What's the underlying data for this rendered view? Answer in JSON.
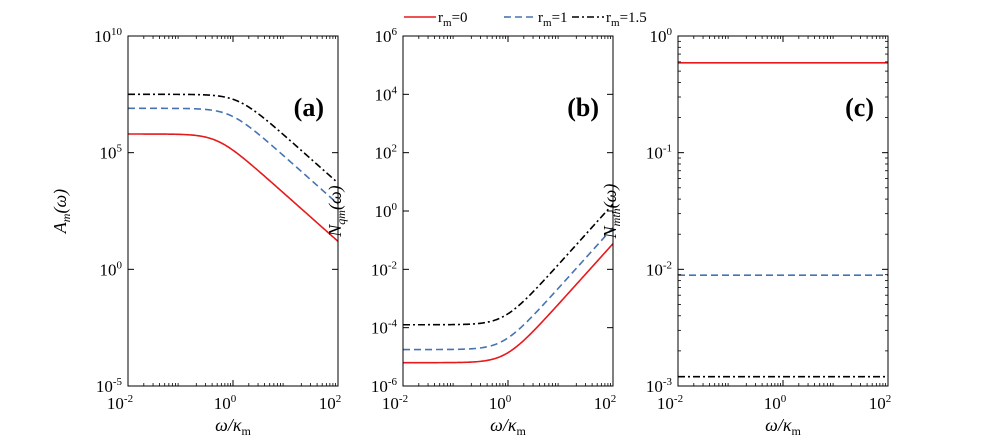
{
  "legend": {
    "entries": [
      {
        "label_text": "r",
        "label_sub": "m",
        "label_rest": "=0"
      },
      {
        "label_text": "r",
        "label_sub": "m",
        "label_rest": "=1"
      },
      {
        "label_text": "r",
        "label_sub": "m",
        "label_rest": "=1.5"
      }
    ]
  },
  "chart_data": [
    {
      "type": "line",
      "panel_label": "(a)",
      "ylabel": "A_m(ω)",
      "ylabel_main": "A",
      "ylabel_sub": "m",
      "ylabel_rest": "(ω)",
      "xlabel_main": "ω/κ",
      "xlabel_sub": "m",
      "xscale": "log",
      "yscale": "log",
      "xlim_log10": [
        -2,
        2
      ],
      "ylim_log10": [
        -5,
        10
      ],
      "xticks": [
        {
          "base": "10",
          "exp": "-2",
          "value": -2
        },
        {
          "base": "10",
          "exp": "0",
          "value": 0
        },
        {
          "base": "10",
          "exp": "2",
          "value": 2
        }
      ],
      "yticks": [
        {
          "base": "10",
          "exp": "-5",
          "value": -5
        },
        {
          "base": "10",
          "exp": "0",
          "value": 0
        },
        {
          "base": "10",
          "exp": "5",
          "value": 5
        },
        {
          "base": "10",
          "exp": "10",
          "value": 10
        }
      ],
      "series": [
        {
          "name": "r_m=0",
          "color": "#e8191c",
          "dash": "solid",
          "model": "lorentz",
          "plateau_log10": 5.8,
          "corner_log10": -0.3
        },
        {
          "name": "r_m=1",
          "color": "#4674b1",
          "dash": "dashed",
          "model": "lorentz",
          "plateau_log10": 6.9,
          "corner_log10": -0.05
        },
        {
          "name": "r_m=1.5",
          "color": "#000000",
          "dash": "dashdot",
          "model": "lorentz",
          "plateau_log10": 7.5,
          "corner_log10": 0.1
        }
      ]
    },
    {
      "type": "line",
      "panel_label": "(b)",
      "ylabel": "N_qm(ω)",
      "ylabel_main": "N",
      "ylabel_sub": "qm",
      "ylabel_rest": "(ω)",
      "xlabel_main": "ω/κ",
      "xlabel_sub": "m",
      "xscale": "log",
      "yscale": "log",
      "xlim_log10": [
        -2,
        2
      ],
      "ylim_log10": [
        -6,
        6
      ],
      "xticks": [
        {
          "base": "10",
          "exp": "-2",
          "value": -2
        },
        {
          "base": "10",
          "exp": "0",
          "value": 0
        },
        {
          "base": "10",
          "exp": "2",
          "value": 2
        }
      ],
      "yticks": [
        {
          "base": "10",
          "exp": "-6",
          "value": -6
        },
        {
          "base": "10",
          "exp": "-4",
          "value": -4
        },
        {
          "base": "10",
          "exp": "-2",
          "value": -2
        },
        {
          "base": "10",
          "exp": "0",
          "value": 0
        },
        {
          "base": "10",
          "exp": "2",
          "value": 2
        },
        {
          "base": "10",
          "exp": "4",
          "value": 4
        },
        {
          "base": "10",
          "exp": "6",
          "value": 6
        }
      ],
      "series": [
        {
          "name": "r_m=0",
          "color": "#e8191c",
          "dash": "solid",
          "model": "rise",
          "floor_log10": -5.2,
          "corner_log10": -0.04
        },
        {
          "name": "r_m=1",
          "color": "#4674b1",
          "dash": "dashed",
          "model": "rise",
          "floor_log10": -4.75,
          "corner_log10": -0.09
        },
        {
          "name": "r_m=1.5",
          "color": "#000000",
          "dash": "dashdot",
          "model": "rise",
          "floor_log10": -3.9,
          "corner_log10": -0.07
        }
      ]
    },
    {
      "type": "line",
      "panel_label": "(c)",
      "ylabel": "N_mth(ω)",
      "ylabel_main": "N",
      "ylabel_sub": "mth",
      "ylabel_rest": "(ω)",
      "xlabel_main": "ω/κ",
      "xlabel_sub": "m",
      "xscale": "log",
      "yscale": "log",
      "xlim_log10": [
        -2,
        2
      ],
      "ylim_log10": [
        -3,
        0
      ],
      "xticks": [
        {
          "base": "10",
          "exp": "-2",
          "value": -2
        },
        {
          "base": "10",
          "exp": "0",
          "value": 0
        },
        {
          "base": "10",
          "exp": "2",
          "value": 2
        }
      ],
      "yticks": [
        {
          "base": "10",
          "exp": "-3",
          "value": -3
        },
        {
          "base": "10",
          "exp": "-2",
          "value": -2
        },
        {
          "base": "10",
          "exp": "-1",
          "value": -1
        },
        {
          "base": "10",
          "exp": "0",
          "value": 0
        }
      ],
      "series": [
        {
          "name": "r_m=0",
          "color": "#e8191c",
          "dash": "solid",
          "model": "const",
          "level_log10": -0.23
        },
        {
          "name": "r_m=1",
          "color": "#4674b1",
          "dash": "dashed",
          "model": "const",
          "level_log10": -2.05
        },
        {
          "name": "r_m=1.5",
          "color": "#000000",
          "dash": "dashdot",
          "model": "const",
          "level_log10": -2.92
        }
      ]
    }
  ]
}
